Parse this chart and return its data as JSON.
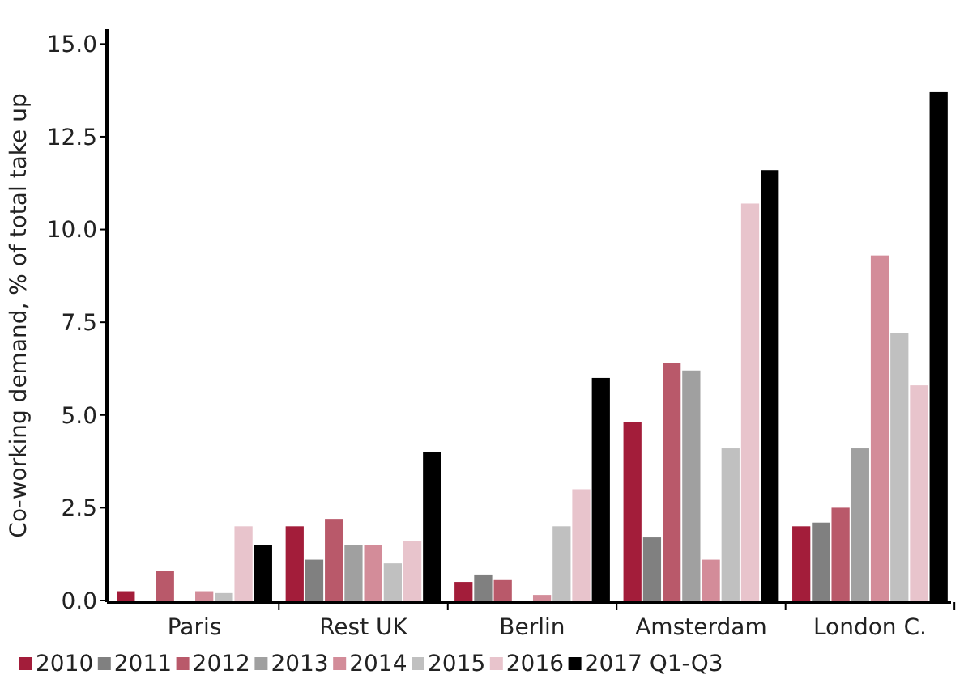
{
  "chart_data": {
    "type": "bar",
    "ylabel": "Co-working demand, % of total take up",
    "categories": [
      "Paris",
      "Rest UK",
      "Berlin",
      "Amsterdam",
      "London C."
    ],
    "series": [
      {
        "name": "2010",
        "color": "#a31d3a",
        "values": [
          0.25,
          2.0,
          0.5,
          4.8,
          2.0
        ]
      },
      {
        "name": "2011",
        "color": "#808080",
        "values": [
          0,
          1.1,
          0.7,
          1.7,
          2.1
        ]
      },
      {
        "name": "2012",
        "color": "#b9596a",
        "values": [
          0.8,
          2.2,
          0.55,
          6.4,
          2.5
        ]
      },
      {
        "name": "2013",
        "color": "#a0a0a0",
        "values": [
          0,
          1.5,
          0,
          6.2,
          4.1
        ]
      },
      {
        "name": "2014",
        "color": "#d38c99",
        "values": [
          0.25,
          1.5,
          0.15,
          1.1,
          9.3
        ]
      },
      {
        "name": "2015",
        "color": "#c0c0c0",
        "values": [
          0.2,
          1.0,
          2.0,
          4.1,
          7.2
        ]
      },
      {
        "name": "2016",
        "color": "#e8c4cc",
        "values": [
          2.0,
          1.6,
          3.0,
          10.7,
          5.8
        ]
      },
      {
        "name": "2017 Q1-Q3",
        "color": "#000000",
        "values": [
          1.5,
          4.0,
          6.0,
          11.6,
          13.7
        ]
      }
    ],
    "ylim": [
      0,
      15.4
    ],
    "yticks": [
      {
        "value": 0,
        "label": "0.0"
      },
      2.5,
      {
        "value": 5,
        "label": "5.0"
      },
      7.5,
      {
        "value": 10,
        "label": "10.0"
      },
      12.5,
      {
        "value": 15,
        "label": "15.0"
      }
    ],
    "grid": false,
    "legend": "bottom"
  }
}
